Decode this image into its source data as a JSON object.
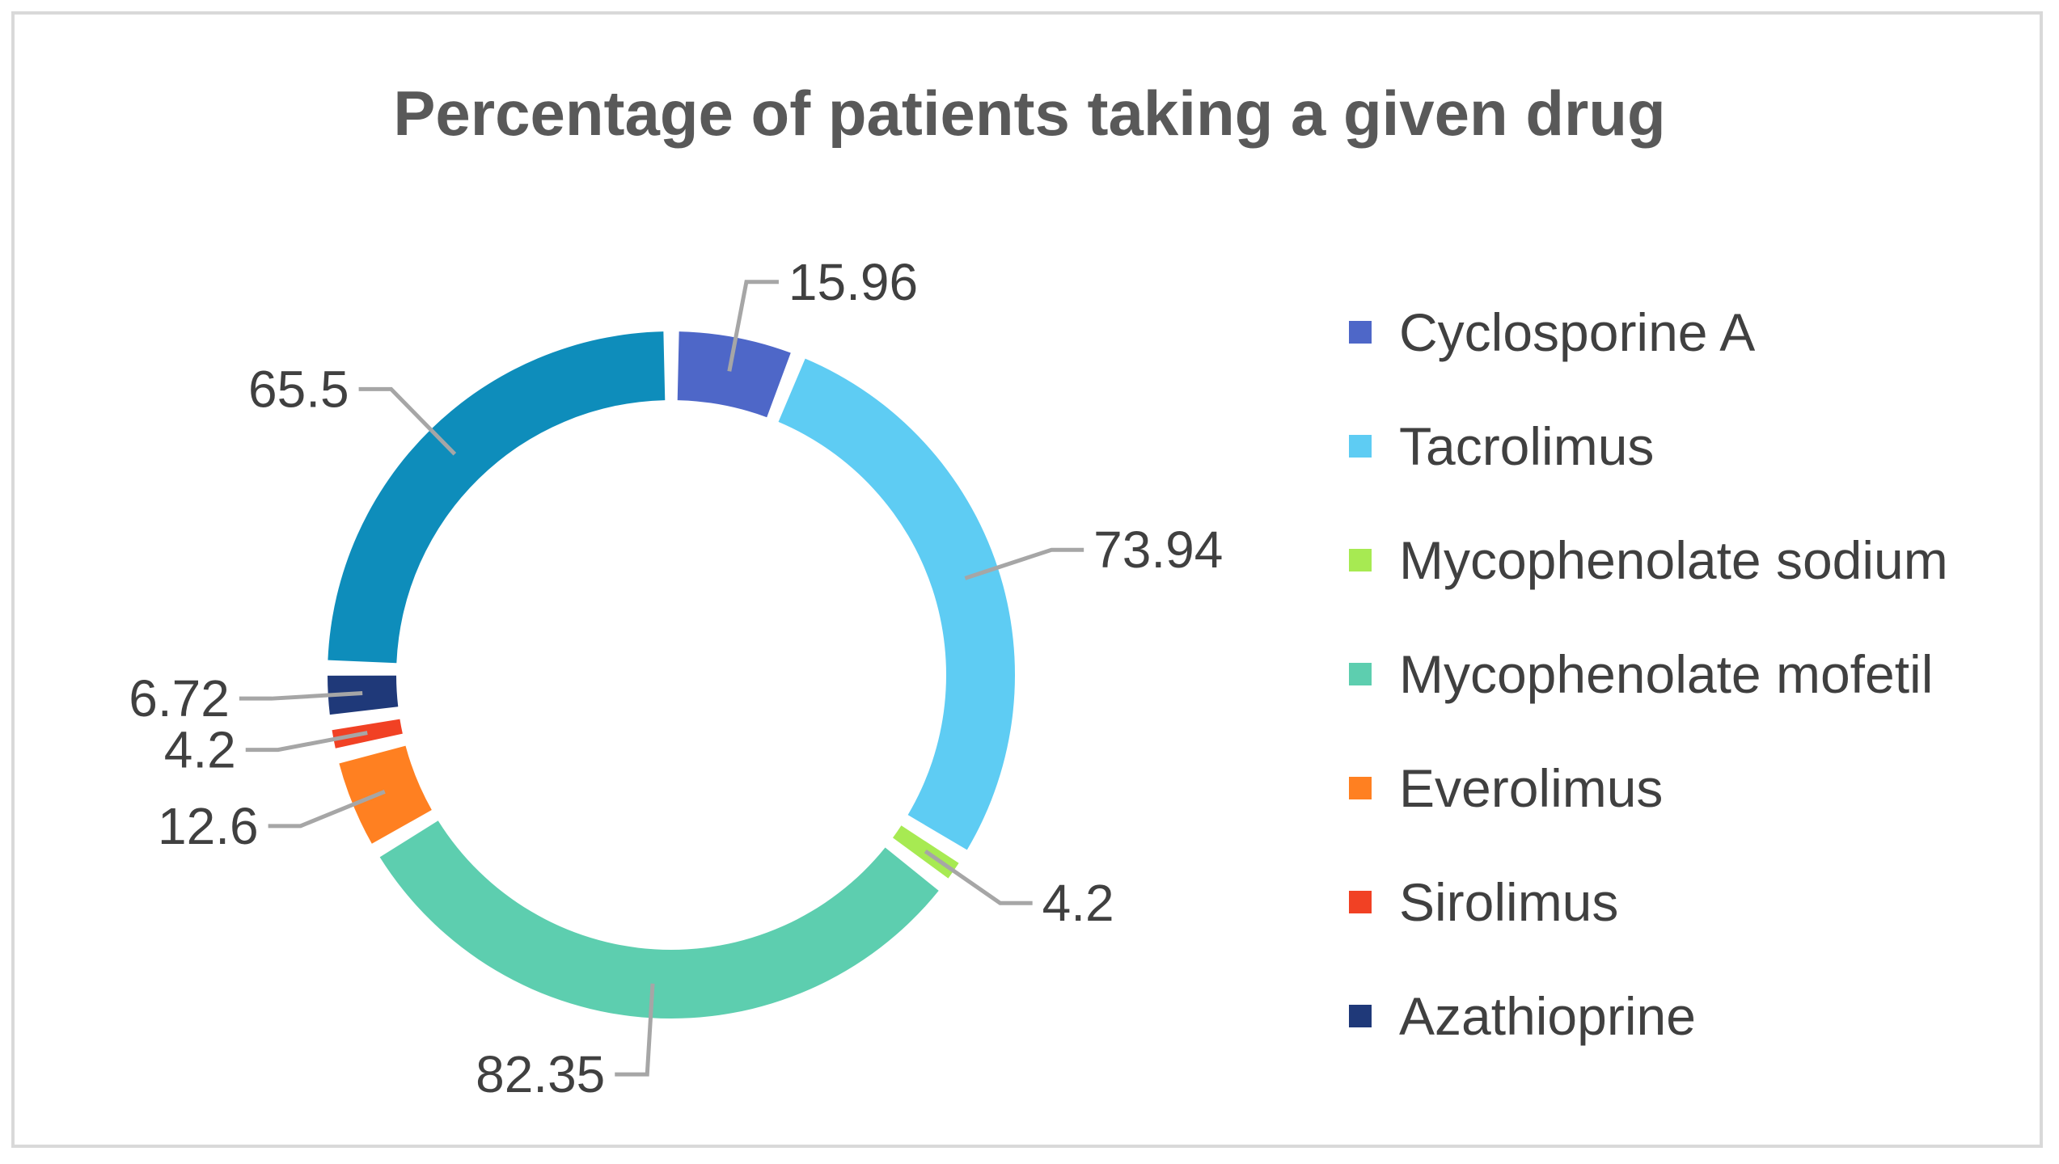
{
  "chart_data": {
    "type": "pie",
    "subtype": "doughnut",
    "title": "Percentage of patients taking a given drug",
    "legend_position": "right",
    "categories": [
      "Cyclosporine A",
      "Tacrolimus",
      "Mycophenolate sodium",
      "Mycophenolate mofetil",
      "Everolimus",
      "Sirolimus",
      "Azathioprine"
    ],
    "values": [
      15.96,
      73.94,
      4.2,
      82.35,
      12.6,
      4.2,
      6.72
    ],
    "data_labels": [
      "15.96",
      "73.94",
      "4.2",
      "82.35",
      "12.6",
      "4.2",
      "6.72"
    ],
    "colors": [
      "#4E67C8",
      "#5ECCF3",
      "#A7EA52",
      "#5DCEAF",
      "#FF8021",
      "#F14124",
      "#1F3979"
    ]
  },
  "second_series_color": "#0E8DBB",
  "second_series_value": "65.5"
}
